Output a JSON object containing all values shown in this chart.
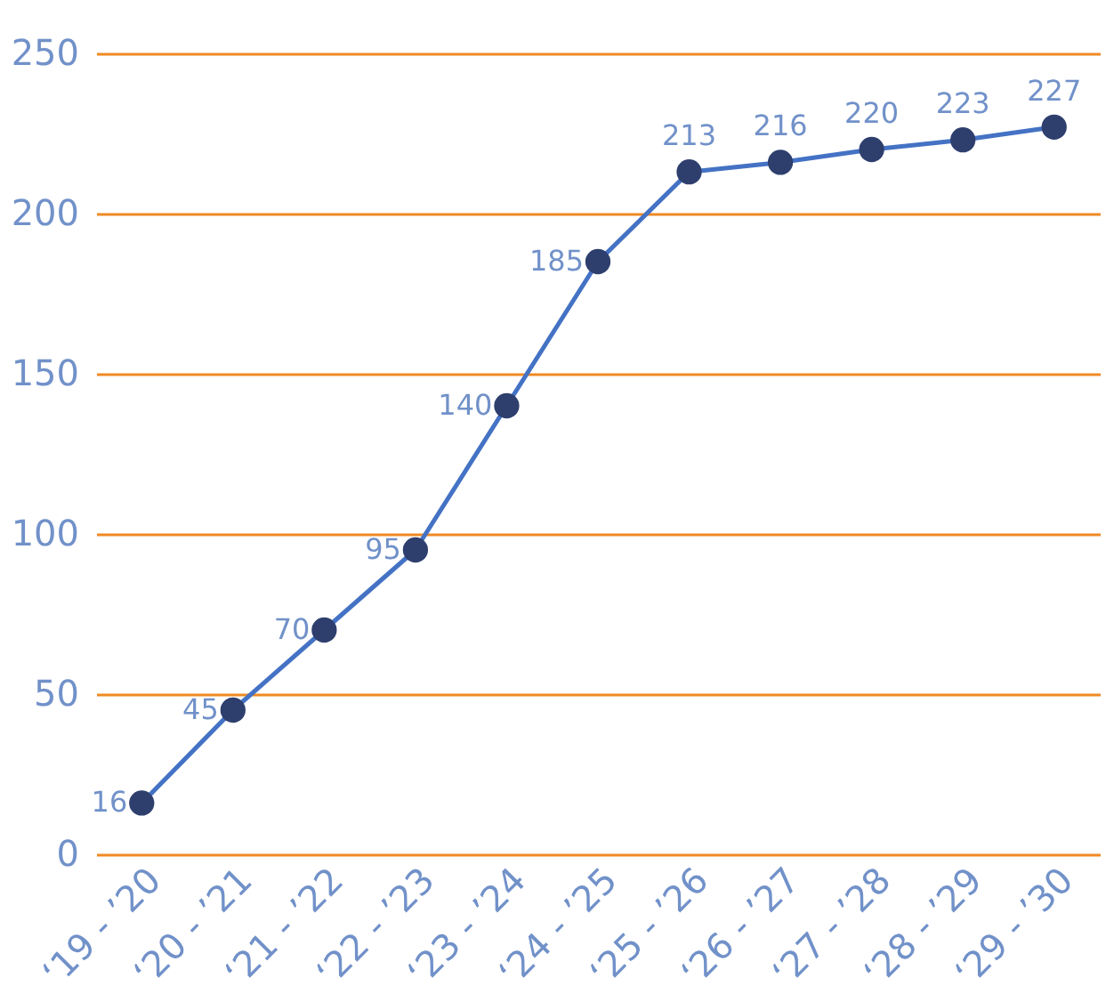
{
  "chart_data": {
    "type": "line",
    "categories": [
      "‘19 - ’20",
      "‘20 - ’21",
      "‘21 - ’22",
      "‘22 - ’23",
      "‘23 - ’24",
      "‘24 - ’25",
      "‘25 - ’26",
      "‘26 - ’27",
      "‘27 - ’28",
      "‘28 - ’29",
      "‘29 - ’30"
    ],
    "series": [
      {
        "color": "#4472c4",
        "values": [
          16,
          45,
          70,
          95,
          140,
          185,
          213,
          216,
          220,
          223,
          227
        ]
      }
    ],
    "ylim": [
      0,
      250
    ],
    "yticks": [
      0,
      50,
      100,
      150,
      200,
      250
    ],
    "grid": "y",
    "data_labels": true,
    "marker": "circle",
    "line_style": "solid"
  }
}
